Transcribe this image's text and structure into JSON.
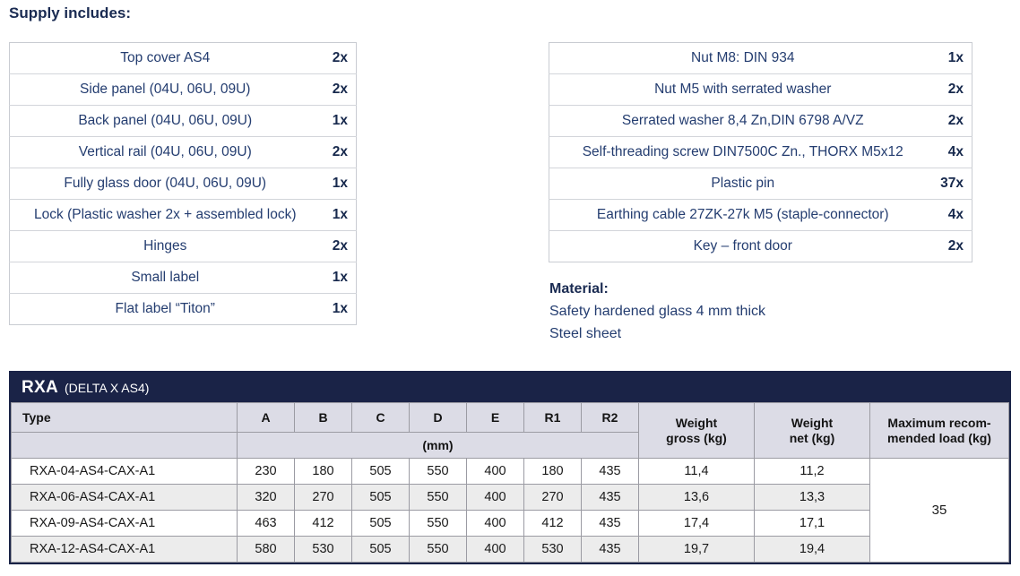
{
  "colors": {
    "navy_bar": "#1a2347",
    "heading_text": "#1a2b52",
    "body_text_blue": "#243d70",
    "spec_header_bg": "#dcdce6",
    "spec_alt_row_bg": "#ececec"
  },
  "heading": "Supply includes:",
  "supply_left": {
    "rows": [
      {
        "item": "Top cover AS4",
        "qty": "2x"
      },
      {
        "item": "Side panel (04U, 06U, 09U)",
        "qty": "2x"
      },
      {
        "item": "Back panel (04U, 06U, 09U)",
        "qty": "1x"
      },
      {
        "item": "Vertical rail (04U, 06U, 09U)",
        "qty": "2x"
      },
      {
        "item": "Fully glass door (04U, 06U, 09U)",
        "qty": "1x"
      },
      {
        "item": "Lock (Plastic washer 2x + assembled lock)",
        "qty": "1x"
      },
      {
        "item": "Hinges",
        "qty": "2x"
      },
      {
        "item": "Small label",
        "qty": "1x"
      },
      {
        "item": "Flat label “Titon”",
        "qty": "1x"
      }
    ]
  },
  "supply_right": {
    "rows": [
      {
        "item": "Nut M8: DIN 934",
        "qty": "1x"
      },
      {
        "item": "Nut M5 with serrated washer",
        "qty": "2x"
      },
      {
        "item": "Serrated washer 8,4 Zn,DIN 6798 A/VZ",
        "qty": "2x"
      },
      {
        "item": "Self-threading screw DIN7500C Zn., THORX M5x12",
        "qty": "4x"
      },
      {
        "item": "Plastic pin",
        "qty": "37x"
      },
      {
        "item": "Earthing cable 27ZK-27k M5 (staple-connector)",
        "qty": "4x"
      },
      {
        "item": "Key – front door",
        "qty": "2x"
      }
    ]
  },
  "material": {
    "label": "Material:",
    "line1": "Safety hardened glass 4 mm thick",
    "line2": "Steel sheet"
  },
  "spec_table": {
    "title": "RXA",
    "subtitle": "(DELTA X AS4)",
    "headers": {
      "type": "Type",
      "dims": [
        "A",
        "B",
        "C",
        "D",
        "E",
        "R1",
        "R2"
      ],
      "unit": "(mm)",
      "weight_gross": "Weight\ngross (kg)",
      "weight_net": "Weight\nnet (kg)",
      "max_load": "Maximum recom-\nmended load (kg)"
    },
    "rows": [
      {
        "type": "RXA-04-AS4-CAX-A1",
        "dims": [
          "230",
          "180",
          "505",
          "550",
          "400",
          "180",
          "435"
        ],
        "gross": "11,4",
        "net": "11,2"
      },
      {
        "type": "RXA-06-AS4-CAX-A1",
        "dims": [
          "320",
          "270",
          "505",
          "550",
          "400",
          "270",
          "435"
        ],
        "gross": "13,6",
        "net": "13,3"
      },
      {
        "type": "RXA-09-AS4-CAX-A1",
        "dims": [
          "463",
          "412",
          "505",
          "550",
          "400",
          "412",
          "435"
        ],
        "gross": "17,4",
        "net": "17,1"
      },
      {
        "type": "RXA-12-AS4-CAX-A1",
        "dims": [
          "580",
          "530",
          "505",
          "550",
          "400",
          "530",
          "435"
        ],
        "gross": "19,7",
        "net": "19,4"
      }
    ],
    "max_load_value": "35"
  }
}
